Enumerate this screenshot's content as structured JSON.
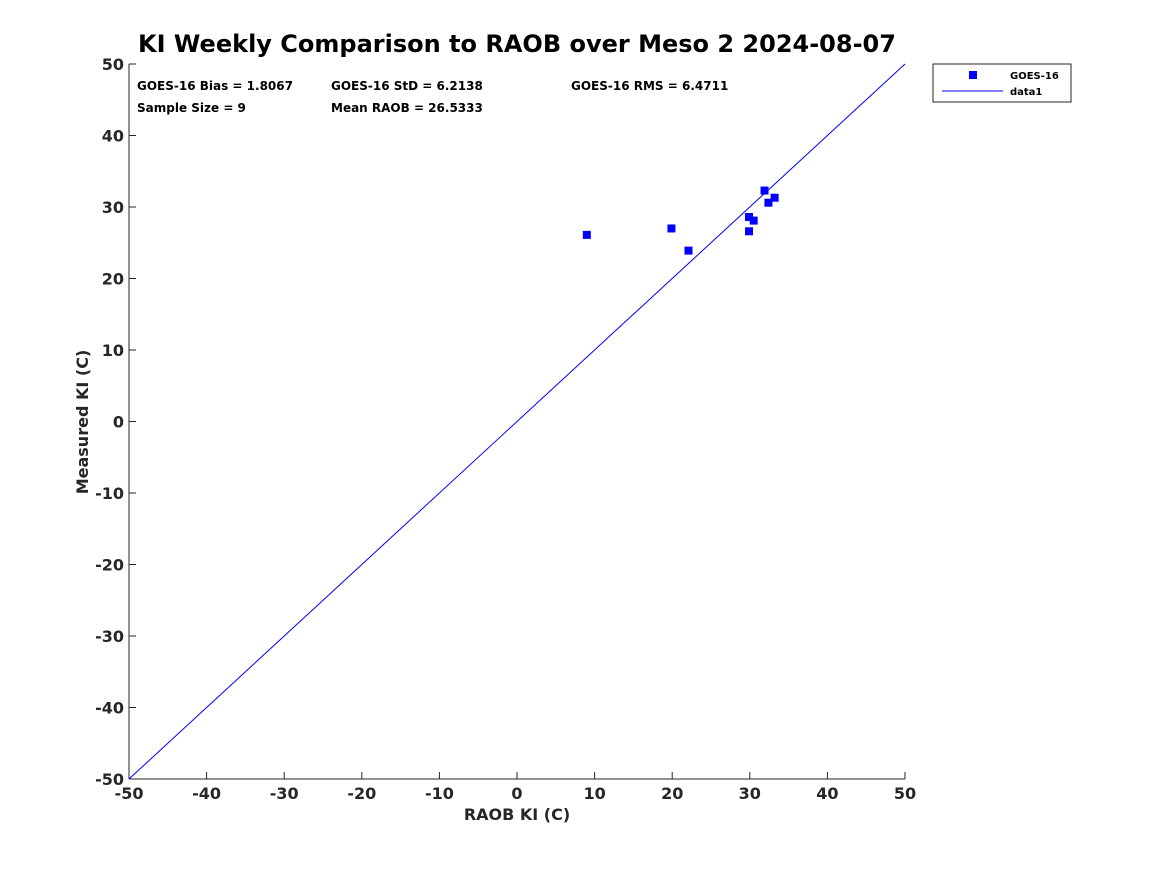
{
  "chart_data": {
    "type": "scatter",
    "title": "KI Weekly Comparison to RAOB over Meso 2 2024-08-07",
    "xlabel": "RAOB KI (C)",
    "ylabel": "Measured KI (C)",
    "xlim": [
      -50,
      50
    ],
    "ylim": [
      -50,
      50
    ],
    "xticks": [
      "-50",
      "-40",
      "-30",
      "-20",
      "-10",
      "0",
      "10",
      "20",
      "30",
      "40",
      "50"
    ],
    "yticks": [
      "-50",
      "-40",
      "-30",
      "-20",
      "-10",
      "0",
      "10",
      "20",
      "30",
      "40",
      "50"
    ],
    "grid": false,
    "legend_position": "outside-top-right",
    "series": [
      {
        "name": "GOES-16",
        "kind": "scatter",
        "marker": "square",
        "color": "#0000ff",
        "points": [
          {
            "x": 9.0,
            "y": 26.1
          },
          {
            "x": 19.9,
            "y": 27.0
          },
          {
            "x": 22.1,
            "y": 23.9
          },
          {
            "x": 29.9,
            "y": 28.6
          },
          {
            "x": 30.5,
            "y": 28.1
          },
          {
            "x": 29.9,
            "y": 26.6
          },
          {
            "x": 31.9,
            "y": 32.3
          },
          {
            "x": 32.4,
            "y": 30.6
          },
          {
            "x": 33.2,
            "y": 31.3
          }
        ]
      },
      {
        "name": "data1",
        "kind": "line",
        "color": "#0000ff",
        "points": [
          {
            "x": -50,
            "y": -50
          },
          {
            "x": 50,
            "y": 50
          }
        ]
      }
    ],
    "stats": {
      "bias": "GOES-16 Bias = 1.8067",
      "std": "GOES-16 StD = 6.2138",
      "rms": "GOES-16 RMS = 6.4711",
      "sample_size": "Sample Size = 9",
      "mean_raob": "Mean RAOB = 26.5333"
    }
  }
}
